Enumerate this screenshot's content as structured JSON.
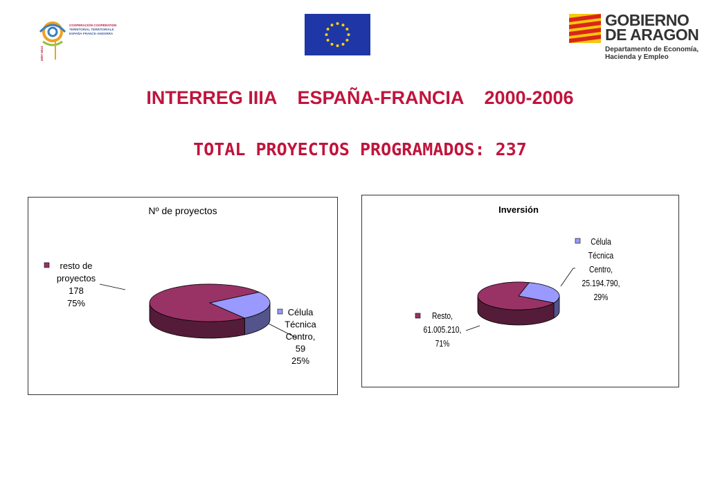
{
  "header": {
    "left_logo_text": [
      "COOPERACIÓN COOPÉRATION",
      "TERRITORIAL TERRITORIALE",
      "ESPAÑA·FRANCE·ANDORRA",
      "2007-2013"
    ],
    "eu_flag": "eu-flag-icon",
    "right_logo": {
      "title_line1": "GOBIERNO",
      "title_line2": "DE ARAGON",
      "dept_line1": "Departamento de Economía,",
      "dept_line2": "Hacienda y Empleo"
    }
  },
  "title_line1": "INTERREG IIIA    ESPAÑA-FRANCIA    2000-2006",
  "title_line2": "TOTAL PROYECTOS PROGRAMADOS: 237",
  "colors": {
    "title": "#c0143c",
    "slice_resto": "#993366",
    "slice_celula": "#9999ff"
  },
  "chart_data": [
    {
      "type": "pie",
      "title": "Nº de proyectos",
      "slices": [
        {
          "name": "Célula Técnica Centro",
          "value": 59,
          "percent": "25%",
          "label_lines": [
            "Célula",
            "Técnica",
            "Centro,",
            "59",
            "25%"
          ]
        },
        {
          "name": "resto de proyectos",
          "value": 178,
          "percent": "75%",
          "label_lines": [
            "resto de",
            "proyectos",
            "178",
            "75%"
          ]
        }
      ],
      "legend": "inline labels with markers"
    },
    {
      "type": "pie",
      "title": "Inversión",
      "slices": [
        {
          "name": "Célula Técnica Centro",
          "value": 25194790,
          "percent": "29%",
          "label_lines": [
            "Célula",
            "Técnica",
            "Centro,",
            "25.194.790,",
            "29%"
          ]
        },
        {
          "name": "Resto",
          "value": 61005210,
          "percent": "71%",
          "label_lines": [
            "Resto,",
            "61.005.210,",
            "71%"
          ]
        }
      ],
      "legend": "inline labels with markers"
    }
  ]
}
